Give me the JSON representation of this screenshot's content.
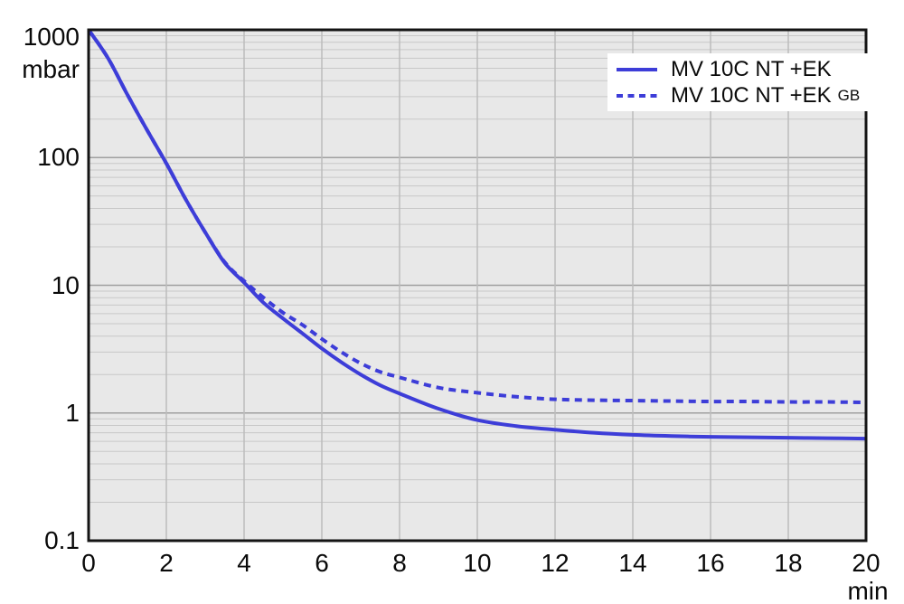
{
  "chart_data": {
    "type": "line",
    "title": "",
    "x_axis": {
      "unit": "min",
      "scale": "linear",
      "min": 0,
      "max": 20,
      "ticks": [
        0,
        2,
        4,
        6,
        8,
        10,
        12,
        14,
        16,
        18,
        20
      ],
      "gridlines": "vertical line at every labeled tick (every 2 min)"
    },
    "y_axis": {
      "unit": "mbar",
      "scale": "log",
      "min": 0.1,
      "max": 1000,
      "ticks": [
        1000,
        100,
        10,
        1,
        0.1
      ],
      "tick_labels": [
        "1000",
        "100",
        "10",
        "1",
        "0.1"
      ],
      "gridlines": "major at decades, minor at 2-9 of each decade"
    },
    "legend": {
      "position": "top-right",
      "entries": [
        {
          "label": "MV 10C NT +EK",
          "suffix": "",
          "line_style": "solid",
          "color": "#3d3dd8"
        },
        {
          "label": "MV 10C NT +EK",
          "suffix": "GB",
          "line_style": "dashed",
          "color": "#3d3dd8"
        }
      ]
    },
    "series": [
      {
        "name": "MV 10C NT +EK",
        "style": "solid",
        "color": "#3d3dd8",
        "points": [
          [
            0,
            1000
          ],
          [
            0.5,
            600
          ],
          [
            1,
            310
          ],
          [
            1.5,
            165
          ],
          [
            2,
            90
          ],
          [
            2.5,
            47
          ],
          [
            3,
            26
          ],
          [
            3.5,
            15
          ],
          [
            4,
            10.5
          ],
          [
            4.5,
            7.3
          ],
          [
            5,
            5.5
          ],
          [
            5.5,
            4.2
          ],
          [
            6,
            3.2
          ],
          [
            6.5,
            2.5
          ],
          [
            7,
            2.0
          ],
          [
            7.5,
            1.65
          ],
          [
            8,
            1.42
          ],
          [
            9,
            1.08
          ],
          [
            10,
            0.88
          ],
          [
            11,
            0.79
          ],
          [
            12,
            0.74
          ],
          [
            13,
            0.7
          ],
          [
            14,
            0.675
          ],
          [
            15,
            0.66
          ],
          [
            16,
            0.65
          ],
          [
            17,
            0.645
          ],
          [
            18,
            0.64
          ],
          [
            19,
            0.635
          ],
          [
            20,
            0.63
          ]
        ]
      },
      {
        "name": "MV 10C NT +EK GB",
        "style": "dashed",
        "color": "#3d3dd8",
        "points": [
          [
            0,
            1000
          ],
          [
            0.5,
            600
          ],
          [
            1,
            310
          ],
          [
            1.5,
            165
          ],
          [
            2,
            90
          ],
          [
            2.5,
            47
          ],
          [
            3,
            26
          ],
          [
            3.5,
            15.2
          ],
          [
            4,
            10.8
          ],
          [
            4.5,
            8.0
          ],
          [
            5,
            6.1
          ],
          [
            5.5,
            4.9
          ],
          [
            6,
            3.8
          ],
          [
            6.5,
            3.0
          ],
          [
            7,
            2.45
          ],
          [
            7.5,
            2.1
          ],
          [
            8,
            1.9
          ],
          [
            9,
            1.58
          ],
          [
            10,
            1.44
          ],
          [
            11,
            1.34
          ],
          [
            12,
            1.28
          ],
          [
            13,
            1.26
          ],
          [
            14,
            1.25
          ],
          [
            15,
            1.24
          ],
          [
            16,
            1.23
          ],
          [
            17,
            1.23
          ],
          [
            18,
            1.22
          ],
          [
            19,
            1.22
          ],
          [
            20,
            1.21
          ]
        ]
      }
    ]
  },
  "colors": {
    "page_background": "#ffffff",
    "plot_background": "#e8e8e8",
    "grid_minor": "#c7c7c7",
    "grid_major": "#9f9f9f",
    "grid_vertical": "#bcbcbc",
    "frame": "#141414",
    "curve": "#3d3dd8",
    "text": "#0a0a0a"
  }
}
